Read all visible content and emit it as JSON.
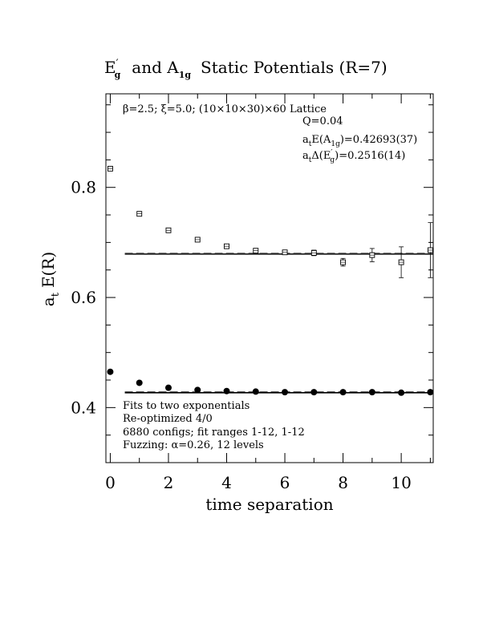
{
  "chart_data": {
    "type": "scatter",
    "title": {
      "part1": "E",
      "part1_sup": "′",
      "part1_sub": "g",
      "part2": "and A",
      "part2_sub": "1g",
      "part3": "Static Potentials (R=7)"
    },
    "xlabel": "time separation",
    "ylabel": {
      "main": "a",
      "sub": "t",
      "rest": "E(R)"
    },
    "xlim": [
      -0.15,
      11.1
    ],
    "ylim": [
      0.3,
      0.97
    ],
    "x_ticks": [
      0,
      2,
      4,
      6,
      8,
      10
    ],
    "y_ticks": [
      0.4,
      0.6,
      0.8
    ],
    "grid": false,
    "annotations_top": {
      "lattice": "β=2.5; ξ=5.0; (10×10×30)×60 Lattice",
      "q": "Q=0.04",
      "e_a1g": {
        "pre": "a",
        "pre_sub": "t",
        "mid": "E(A",
        "mid_sub": "1g",
        "post": ")=0.42693(37)"
      },
      "delta_eg": {
        "pre": "a",
        "pre_sub": "t",
        "mid": "Δ(E",
        "mid_sup": "′",
        "mid_sub": "g",
        "post": ")=0.2516(14)"
      }
    },
    "annotations_bottom": [
      "Fits to two exponentials",
      "Re-optimized 4/0",
      "6880 configs; fit ranges 1-12, 1-12",
      "Fuzzing: α=0.26, 12 levels"
    ],
    "series": [
      {
        "marker": "open-square",
        "x": [
          0,
          1,
          2,
          3,
          4,
          5,
          6,
          7,
          8,
          9,
          10,
          11
        ],
        "y": [
          0.834,
          0.752,
          0.722,
          0.705,
          0.693,
          0.685,
          0.682,
          0.681,
          0.664,
          0.677,
          0.664,
          0.686
        ],
        "err": [
          0.001,
          0.001,
          0.001,
          0.002,
          0.003,
          0.004,
          0.004,
          0.005,
          0.007,
          0.012,
          0.028,
          0.05
        ]
      },
      {
        "marker": "filled-circle",
        "x": [
          0,
          1,
          2,
          3,
          4,
          5,
          6,
          7,
          8,
          9,
          10,
          11
        ],
        "y": [
          0.465,
          0.445,
          0.436,
          0.432,
          0.43,
          0.429,
          0.428,
          0.428,
          0.428,
          0.428,
          0.427,
          0.428
        ]
      }
    ],
    "fit_lines": [
      {
        "value": 0.67886,
        "x_from": 0.5,
        "x_to": 11.1
      },
      {
        "value": 0.42693,
        "x_from": 0.5,
        "x_to": 11.1
      }
    ]
  }
}
